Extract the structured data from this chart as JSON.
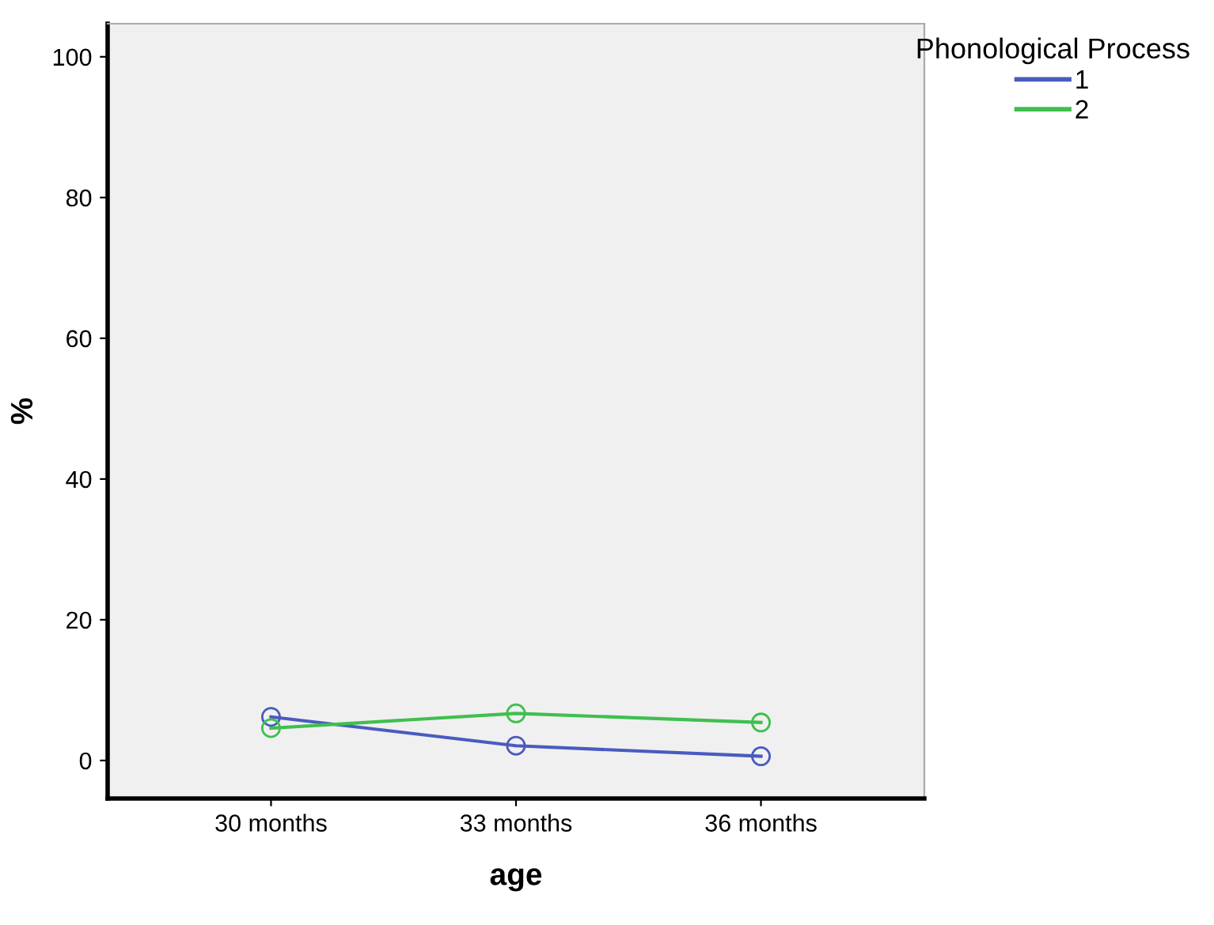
{
  "chart_data": {
    "type": "line",
    "xlabel": "age",
    "ylabel": "%",
    "legend_title": "Phonological Process",
    "categories": [
      "30 months",
      "33 months",
      "36 months"
    ],
    "series": [
      {
        "name": "1",
        "color": "#4a5bbf",
        "values": [
          6.2,
          2.1,
          0.6
        ]
      },
      {
        "name": "2",
        "color": "#3fbf4f",
        "values": [
          4.6,
          6.7,
          5.4
        ]
      }
    ],
    "ylim": [
      -5.4,
      104.7
    ],
    "yticks": [
      0,
      20,
      40,
      60,
      80,
      100
    ],
    "grid": false,
    "legend": "top right",
    "marker": "circle",
    "line_style": "solid"
  }
}
